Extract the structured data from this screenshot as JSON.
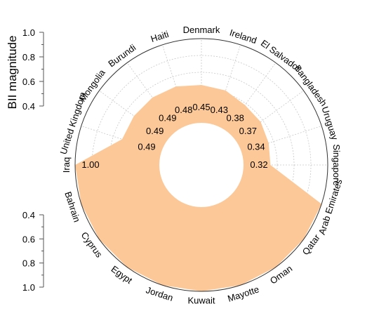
{
  "chart_data": {
    "type": "area",
    "subtype": "radial",
    "categories": [
      "Denmark",
      "Ireland",
      "El Salvador",
      "Bangladesh",
      "Uruguay",
      "Singapore",
      "Arab Emirates",
      "Qatar",
      "Oman",
      "Mayotte",
      "Kuwait",
      "Jordan",
      "Egypt",
      "Cyprus",
      "Bahrain",
      "Iraq",
      "United Kingdom",
      "Mongolia",
      "Burundi",
      "Haiti"
    ],
    "values": [
      0.45,
      0.43,
      0.38,
      0.37,
      0.34,
      0.32,
      1.0,
      1.0,
      1.0,
      1.0,
      1.0,
      1.0,
      1.0,
      1.0,
      1.0,
      1.0,
      0.49,
      0.49,
      0.49,
      0.48
    ],
    "value_labels": [
      "0.45",
      "0.43",
      "0.38",
      "0.37",
      "0.34",
      "0.32",
      "",
      "",
      "",
      "",
      "",
      "",
      "",
      "",
      "",
      "1.00",
      "0.49",
      "0.49",
      "0.49",
      "0.48"
    ],
    "ylabel": "BII magnitude",
    "ylim": [
      0,
      1.0
    ],
    "axis_ticks_top": [
      "0.4",
      "0.6",
      "0.8",
      "1.0"
    ],
    "axis_ticks_bottom": [
      "0.4",
      "0.6",
      "0.8",
      "1.0"
    ],
    "grid": true,
    "fill_color": "#fdc897",
    "inner_hole": true,
    "legend": "none"
  }
}
